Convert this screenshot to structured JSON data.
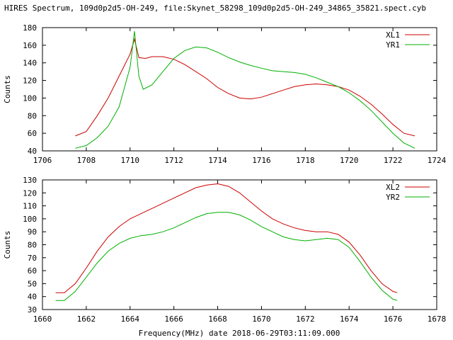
{
  "figure": {
    "title": "HIRES Spectrum, 109d0p2d5-OH-249, file:Skynet_58298_109d0p2d5-OH-249_34865_35821.spect.cyb",
    "xlabel": "Frequency(MHz) date 2018-06-29T03:11:09.000",
    "ylabel": "Counts"
  },
  "colors": {
    "red": "#cc0000",
    "green": "#00b000"
  },
  "chart_data": [
    {
      "type": "line",
      "xlim": [
        1706,
        1724
      ],
      "ylim": [
        40,
        180
      ],
      "xticks": [
        1706,
        1708,
        1710,
        1712,
        1714,
        1716,
        1718,
        1720,
        1722,
        1724
      ],
      "yticks": [
        40,
        60,
        80,
        100,
        120,
        140,
        160,
        180
      ],
      "ylabel": "Counts",
      "legend": "top-right",
      "series": [
        {
          "name": "XL1",
          "color": "#cc0000",
          "x": [
            1707.5,
            1708.0,
            1708.5,
            1709.0,
            1709.5,
            1710.0,
            1710.2,
            1710.4,
            1710.7,
            1711.0,
            1711.5,
            1712.0,
            1712.5,
            1713.0,
            1713.5,
            1714.0,
            1714.5,
            1715.0,
            1715.5,
            1716.0,
            1716.5,
            1717.0,
            1717.5,
            1718.0,
            1718.5,
            1719.0,
            1719.5,
            1720.0,
            1720.5,
            1721.0,
            1721.5,
            1722.0,
            1722.5,
            1723.0
          ],
          "y": [
            57,
            62,
            80,
            100,
            125,
            150,
            167,
            146,
            145,
            147,
            147,
            144,
            138,
            130,
            122,
            112,
            105,
            100,
            99,
            101,
            105,
            109,
            113,
            115,
            116,
            115,
            113,
            109,
            102,
            93,
            82,
            70,
            60,
            57
          ]
        },
        {
          "name": "YR1",
          "color": "#00b000",
          "x": [
            1707.5,
            1708.0,
            1708.5,
            1709.0,
            1709.5,
            1710.0,
            1710.2,
            1710.4,
            1710.6,
            1711.0,
            1711.5,
            1712.0,
            1712.5,
            1713.0,
            1713.5,
            1714.0,
            1714.5,
            1715.0,
            1715.5,
            1716.0,
            1716.5,
            1717.0,
            1717.5,
            1718.0,
            1718.5,
            1719.0,
            1719.5,
            1720.0,
            1720.5,
            1721.0,
            1721.5,
            1722.0,
            1722.5,
            1723.0
          ],
          "y": [
            43,
            46,
            55,
            68,
            90,
            135,
            176,
            125,
            110,
            115,
            130,
            145,
            154,
            158,
            157,
            152,
            146,
            141,
            137,
            134,
            131,
            130,
            129,
            127,
            123,
            118,
            113,
            106,
            97,
            86,
            73,
            60,
            49,
            43
          ]
        }
      ]
    },
    {
      "type": "line",
      "xlim": [
        1660,
        1678
      ],
      "ylim": [
        30,
        130
      ],
      "xticks": [
        1660,
        1662,
        1664,
        1666,
        1668,
        1670,
        1672,
        1674,
        1676,
        1678
      ],
      "yticks": [
        30,
        40,
        50,
        60,
        70,
        80,
        90,
        100,
        110,
        120,
        130
      ],
      "ylabel": "Counts",
      "legend": "top-right",
      "series": [
        {
          "name": "XL2",
          "color": "#cc0000",
          "x": [
            1660.6,
            1661.0,
            1661.5,
            1662.0,
            1662.5,
            1663.0,
            1663.5,
            1664.0,
            1664.5,
            1665.0,
            1665.5,
            1666.0,
            1666.5,
            1667.0,
            1667.5,
            1668.0,
            1668.5,
            1669.0,
            1669.5,
            1670.0,
            1670.5,
            1671.0,
            1671.5,
            1672.0,
            1672.5,
            1673.0,
            1673.5,
            1674.0,
            1674.5,
            1675.0,
            1675.5,
            1676.0,
            1676.2
          ],
          "y": [
            43,
            43,
            50,
            62,
            75,
            86,
            94,
            100,
            104,
            108,
            112,
            116,
            120,
            124,
            126,
            127,
            125,
            120,
            113,
            106,
            100,
            96,
            93,
            91,
            90,
            90,
            88,
            82,
            72,
            60,
            50,
            44,
            43
          ]
        },
        {
          "name": "YR2",
          "color": "#00b000",
          "x": [
            1660.6,
            1661.0,
            1661.5,
            1662.0,
            1662.5,
            1663.0,
            1663.5,
            1664.0,
            1664.5,
            1665.0,
            1665.5,
            1666.0,
            1666.5,
            1667.0,
            1667.5,
            1668.0,
            1668.5,
            1669.0,
            1669.5,
            1670.0,
            1670.5,
            1671.0,
            1671.5,
            1672.0,
            1672.5,
            1673.0,
            1673.5,
            1674.0,
            1674.5,
            1675.0,
            1675.5,
            1676.0,
            1676.2
          ],
          "y": [
            37,
            37,
            44,
            55,
            66,
            75,
            81,
            85,
            87,
            88,
            90,
            93,
            97,
            101,
            104,
            105,
            105,
            103,
            99,
            94,
            90,
            86,
            84,
            83,
            84,
            85,
            84,
            78,
            67,
            55,
            45,
            38,
            37
          ]
        }
      ]
    }
  ]
}
